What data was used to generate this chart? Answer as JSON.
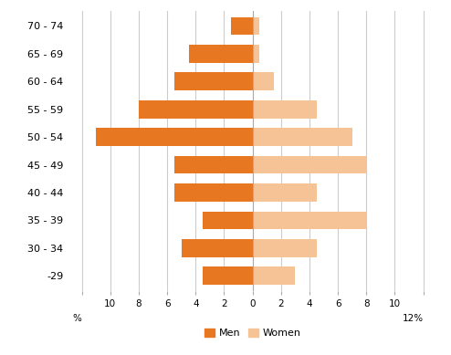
{
  "age_groups": [
    "-29",
    "30 - 34",
    "35 - 39",
    "40 - 44",
    "45 - 49",
    "50 - 54",
    "55 - 59",
    "60 - 64",
    "65 - 69",
    "70 - 74"
  ],
  "men_values": [
    -3.5,
    -5.0,
    -3.5,
    -5.5,
    -5.5,
    -11.0,
    -8.0,
    -5.5,
    -4.5,
    -1.5
  ],
  "women_values": [
    3.0,
    4.5,
    8.0,
    4.5,
    8.0,
    7.0,
    4.5,
    1.5,
    0.5,
    0.5
  ],
  "men_color": "#E87722",
  "women_color": "#F5C396",
  "xlim": [
    -13,
    13
  ],
  "xticks": [
    -12,
    -10,
    -8,
    -6,
    -4,
    -2,
    0,
    2,
    4,
    6,
    8,
    10,
    12
  ],
  "background_color": "#ffffff",
  "grid_color": "#cccccc",
  "bar_height": 0.65,
  "legend_men": "Men",
  "legend_women": "Women",
  "ytick_fontsize": 8,
  "xtick_fontsize": 7.5
}
